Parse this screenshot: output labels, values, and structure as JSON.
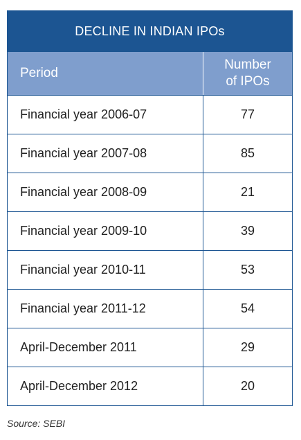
{
  "chart_data": {
    "type": "table",
    "title": "DECLINE IN INDIAN IPOs",
    "columns": [
      "Period",
      "Number of IPOs"
    ],
    "column_header_lines": {
      "number": [
        "Number",
        "of IPOs"
      ]
    },
    "rows": [
      {
        "period": "Financial year 2006-07",
        "value": "77"
      },
      {
        "period": "Financial year 2007-08",
        "value": "85"
      },
      {
        "period": "Financial year 2008-09",
        "value": "21"
      },
      {
        "period": "Financial year 2009-10",
        "value": "39"
      },
      {
        "period": "Financial year 2010-11",
        "value": "53"
      },
      {
        "period": "Financial year 2011-12",
        "value": "54"
      },
      {
        "period": "April-December 2011",
        "value": "29"
      },
      {
        "period": "April-December 2012",
        "value": "20"
      }
    ],
    "source": "Source: SEBI"
  },
  "colors": {
    "title_bg": "#1c5592",
    "header_bg": "#7f9ecd",
    "border": "#1c5592"
  }
}
